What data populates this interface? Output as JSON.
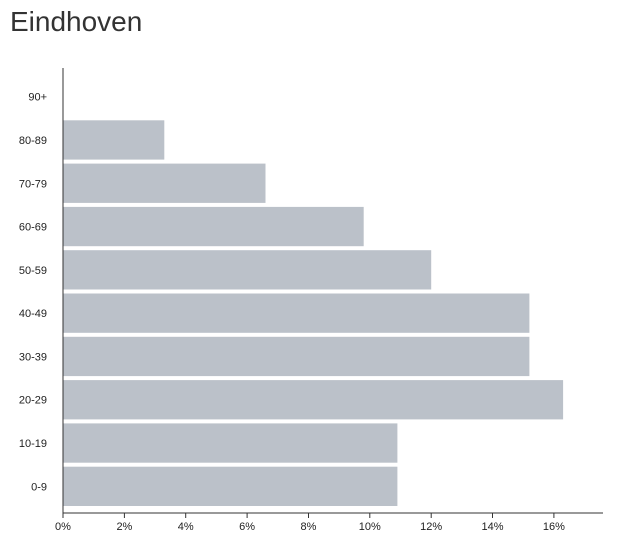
{
  "title": "Eindhoven",
  "chart_data": {
    "type": "bar",
    "orientation": "horizontal",
    "title": "Eindhoven",
    "xlabel": "",
    "ylabel": "",
    "categories": [
      "90+",
      "80-89",
      "70-79",
      "60-69",
      "50-59",
      "40-49",
      "30-39",
      "20-29",
      "10-19",
      "0-9"
    ],
    "values": [
      0.0,
      3.3,
      6.6,
      9.8,
      12.0,
      15.2,
      15.2,
      16.3,
      10.9,
      10.9
    ],
    "xlim": [
      0,
      17.6
    ],
    "x_ticks": [
      "0%",
      "2%",
      "4%",
      "6%",
      "8%",
      "10%",
      "12%",
      "14%",
      "16%"
    ],
    "x_tick_values": [
      0,
      2,
      4,
      6,
      8,
      10,
      12,
      14,
      16
    ],
    "bar_color": "#bbc1c9",
    "grid": false,
    "legend": "none"
  }
}
